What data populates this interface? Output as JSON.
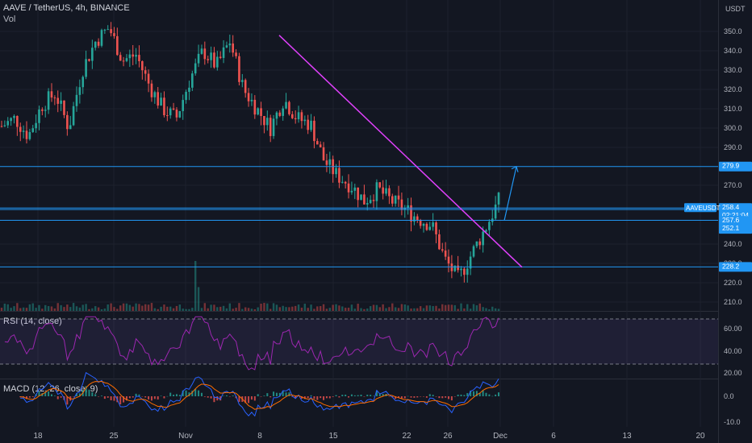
{
  "header": {
    "symbol_line": "AAVE / TetherUS, 4h, BINANCE",
    "volume_label": "Vol",
    "currency": "USDT"
  },
  "indicators": {
    "rsi_label": "RSI (14, close)",
    "macd_label": "MACD (12, 26, close, 9)"
  },
  "colors": {
    "background": "#131722",
    "up": "#26a69a",
    "down": "#ef5350",
    "trendline": "#e040fb",
    "level": "#2196f3",
    "rsi": "#9c27b0",
    "macd": "#2962ff",
    "signal": "#ff6d00"
  },
  "chart_data": {
    "type": "line",
    "price_axis_ticks": [
      "350.0",
      "340.0",
      "330.0",
      "320.0",
      "310.0",
      "300.0",
      "290.0",
      "270.0",
      "240.0",
      "230.0",
      "220.0",
      "210.0"
    ],
    "rsi_axis_ticks": [
      "60.00",
      "40.00",
      "20.00"
    ],
    "macd_axis_ticks": [
      "0.0",
      "-10.0"
    ],
    "time_axis_ticks": [
      "18",
      "25",
      "Nov",
      "8",
      "15",
      "22",
      "26",
      "Dec",
      "6",
      "13",
      "20"
    ],
    "horizontal_levels": [
      {
        "label": "279.9",
        "value": 279.9
      },
      {
        "label": "258.4",
        "value": 258.4
      },
      {
        "label": "257.6",
        "value": 257.6
      },
      {
        "label": "252.1",
        "value": 252.1
      },
      {
        "label": "228.2",
        "value": 228.2
      }
    ],
    "price_badges": {
      "symbol": "AAVEUSDT",
      "last": "258.4",
      "countdown": "02:21:04",
      "level_a": "257.6",
      "level_b": "252.1",
      "top_level": "279.9",
      "bottom_level": "228.2"
    },
    "trendline": {
      "from": {
        "x_day": "Nov 9",
        "value": 348
      },
      "to": {
        "x_day": "Dec 1",
        "value": 228
      }
    },
    "rsi_bands": [
      70,
      30
    ],
    "close_series_approx": [
      301,
      305,
      296,
      312,
      318,
      300,
      330,
      345,
      352,
      335,
      338,
      322,
      310,
      305,
      325,
      340,
      332,
      345,
      320,
      310,
      300,
      315,
      305,
      302,
      283,
      275,
      270,
      262,
      268,
      262,
      258,
      253,
      250,
      232,
      222,
      235,
      248,
      262
    ]
  }
}
